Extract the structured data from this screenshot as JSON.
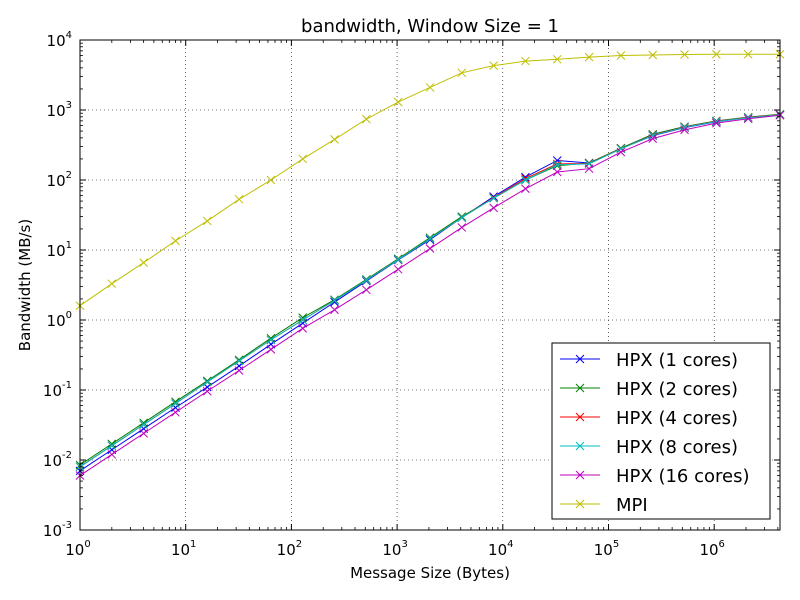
{
  "chart_data": {
    "type": "line",
    "title": "bandwidth, Window Size = 1",
    "xlabel": "Message Size (Bytes)",
    "ylabel": "Bandwidth (MB/s)",
    "xscale": "log",
    "yscale": "log",
    "xlim": [
      1,
      4194304
    ],
    "ylim": [
      0.001,
      10000
    ],
    "grid": true,
    "legend_position": "lower-right",
    "x_tick_labels": [
      {
        "base": "10",
        "exp": "0",
        "value": 1
      },
      {
        "base": "10",
        "exp": "1",
        "value": 10
      },
      {
        "base": "10",
        "exp": "2",
        "value": 100
      },
      {
        "base": "10",
        "exp": "3",
        "value": 1000
      },
      {
        "base": "10",
        "exp": "4",
        "value": 10000
      },
      {
        "base": "10",
        "exp": "5",
        "value": 100000
      },
      {
        "base": "10",
        "exp": "6",
        "value": 1000000
      }
    ],
    "y_tick_labels": [
      {
        "base": "10",
        "exp": "-3",
        "value": 0.001
      },
      {
        "base": "10",
        "exp": "-2",
        "value": 0.01
      },
      {
        "base": "10",
        "exp": "-1",
        "value": 0.1
      },
      {
        "base": "10",
        "exp": "0",
        "value": 1
      },
      {
        "base": "10",
        "exp": "1",
        "value": 10
      },
      {
        "base": "10",
        "exp": "2",
        "value": 100
      },
      {
        "base": "10",
        "exp": "3",
        "value": 1000
      },
      {
        "base": "10",
        "exp": "4",
        "value": 10000
      }
    ],
    "x": [
      1,
      2,
      4,
      8,
      16,
      32,
      64,
      128,
      256,
      512,
      1024,
      2048,
      4096,
      8192,
      16384,
      32768,
      65536,
      131072,
      262144,
      524288,
      1048576,
      2097152,
      4194304
    ],
    "series": [
      {
        "name": "HPX (1 cores)",
        "color": "#0000ff",
        "values": [
          0.007,
          0.014,
          0.028,
          0.056,
          0.11,
          0.22,
          0.45,
          0.9,
          1.8,
          3.6,
          7.2,
          14,
          29,
          58,
          110,
          190,
          175,
          280,
          430,
          560,
          680,
          780,
          860
        ]
      },
      {
        "name": "HPX (2 cores)",
        "color": "#008000",
        "values": [
          0.0085,
          0.017,
          0.034,
          0.068,
          0.135,
          0.27,
          0.55,
          1.08,
          1.95,
          3.8,
          7.5,
          15,
          30,
          55,
          100,
          160,
          175,
          285,
          450,
          580,
          700,
          790,
          870
        ]
      },
      {
        "name": "HPX (4 cores)",
        "color": "#ff0000",
        "values": [
          0.008,
          0.016,
          0.032,
          0.064,
          0.13,
          0.26,
          0.52,
          1.0,
          1.9,
          3.7,
          7.3,
          14.5,
          29,
          56,
          105,
          170,
          172,
          280,
          440,
          570,
          690,
          780,
          860
        ]
      },
      {
        "name": "HPX (8 cores)",
        "color": "#00bfbf",
        "values": [
          0.008,
          0.016,
          0.032,
          0.064,
          0.13,
          0.26,
          0.52,
          1.0,
          1.9,
          3.7,
          7.3,
          14.5,
          29,
          55,
          100,
          165,
          170,
          278,
          435,
          565,
          685,
          775,
          855
        ]
      },
      {
        "name": "HPX (16 cores)",
        "color": "#bf00bf",
        "values": [
          0.006,
          0.012,
          0.024,
          0.048,
          0.096,
          0.19,
          0.38,
          0.76,
          1.4,
          2.7,
          5.3,
          10.5,
          21,
          40,
          75,
          130,
          145,
          250,
          390,
          520,
          650,
          750,
          840
        ]
      },
      {
        "name": "MPI",
        "color": "#bfbf00",
        "values": [
          1.6,
          3.3,
          6.6,
          13.5,
          26,
          53,
          100,
          200,
          380,
          740,
          1300,
          2100,
          3400,
          4300,
          5000,
          5300,
          5700,
          6000,
          6100,
          6200,
          6250,
          6250,
          6250
        ]
      }
    ]
  }
}
